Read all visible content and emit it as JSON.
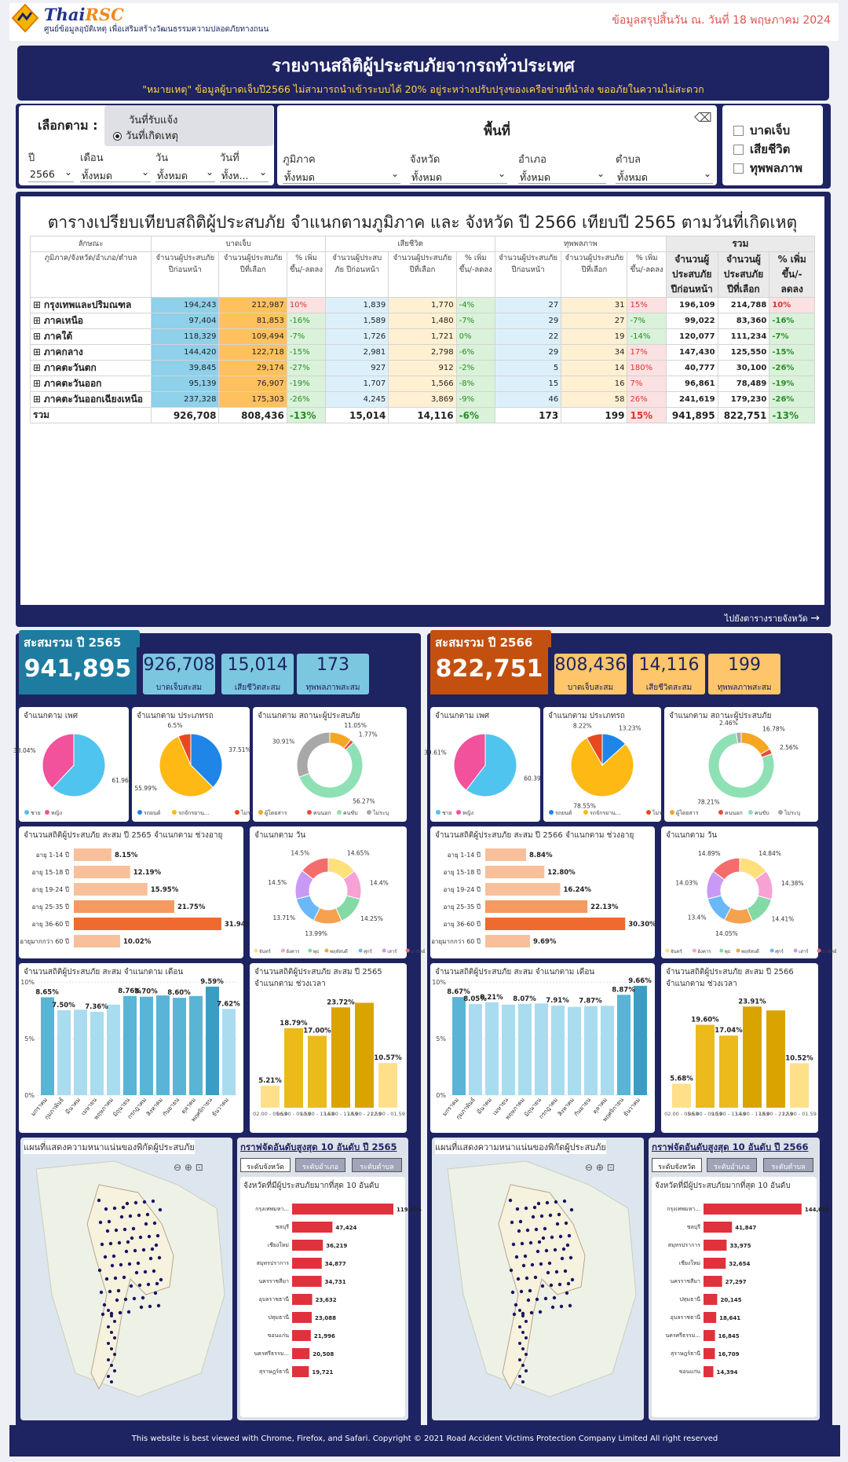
{
  "header": {
    "brand_a": "Thai",
    "brand_b": "RSC",
    "subtitle": "ศูนย์ข้อมูลอุบัติเหตุ เพื่อเสริมสร้างวัฒนธรรมความปลอดภัยทางถนน",
    "date": "ข้อมูลสรุปสิ้นวัน ณ. วันที่ 18 พฤษภาคม 2024"
  },
  "banner": {
    "title": "รายงานสถิติผู้ประสบภัยจากรถทั่วประเทศ",
    "note": "\"หมายเหตุ\" ข้อมูลผู้บาดเจ็บปี2566 ไม่สามารถนำเข้าระบบได้ 20% อยู่ระหว่างปรับปรุงของเครือข่ายที่นำส่ง ขออภัยในความไม่สะดวก"
  },
  "filters": {
    "select_label": "เลือกตาม :",
    "radio1": "วันที่รับแจ้ง",
    "radio2": "วันที่เกิดเหตุ",
    "year_label": "ปี",
    "year_value": "2566",
    "month_label": "เดือน",
    "month_value": "ทั้งหมด",
    "day_label": "วัน",
    "day_value": "ทั้งหมด",
    "date_label": "วันที่",
    "date_value": "ทั้งห...",
    "area_title": "พื้นที่",
    "region_label": "ภูมิภาค",
    "region_value": "ทั้งหมด",
    "province_label": "จังหวัด",
    "province_value": "ทั้งหมด",
    "district_label": "อำเภอ",
    "district_value": "ทั้งหมด",
    "subdistrict_label": "ตำบล",
    "subdistrict_value": "ทั้งหมด",
    "chk1": "บาดเจ็บ",
    "chk2": "เสียชีวิต",
    "chk3": "ทุพพลภาพ"
  },
  "table": {
    "title": "ตารางเปรียบเทียบสถิติผู้ประสบภัย จำแนกตามภูมิภาค และ จังหวัด ปี 2566 เทียบปี 2565 ตามวันที่เกิดเหตุ",
    "h_char": "ลักษณะ",
    "h_inj": "บาดเจ็บ",
    "h_dead": "เสียชีวิต",
    "h_dis": "ทุพพลภาพ",
    "h_sum": "รวม",
    "h_area": "ภูมิภาค/จังหวัด/อำเภอ/ตำบล",
    "h_prev": "จำนวนผู้ประสบภัย ปีก่อนหน้า",
    "h_sel": "จำนวนผู้ประสบภัย ปีที่เลือก",
    "h_pct": "% เพิ่มขึ้น/-ลดลง",
    "h_sprev": "จำนวนผู้ประสบภัย ปีก่อนหน้า",
    "h_ssel": "จำนวนผู้ประสบภัย ปีที่เลือก",
    "h_spct": "% เพิ่มขึ้น/-ลดลง",
    "rows": [
      {
        "name": "กรุงเทพและปริมณฑล",
        "a": "194,243",
        "b": "212,987",
        "c": "10%",
        "d": "1,839",
        "e": "1,770",
        "f": "-4%",
        "g": "27",
        "h": "31",
        "i": "15%",
        "j": "196,109",
        "k": "214,788",
        "l": "10%"
      },
      {
        "name": "ภาคเหนือ",
        "a": "97,404",
        "b": "81,853",
        "c": "-16%",
        "d": "1,589",
        "e": "1,480",
        "f": "-7%",
        "g": "29",
        "h": "27",
        "i": "-7%",
        "j": "99,022",
        "k": "83,360",
        "l": "-16%"
      },
      {
        "name": "ภาคใต้",
        "a": "118,329",
        "b": "109,494",
        "c": "-7%",
        "d": "1,726",
        "e": "1,721",
        "f": "0%",
        "g": "22",
        "h": "19",
        "i": "-14%",
        "j": "120,077",
        "k": "111,234",
        "l": "-7%"
      },
      {
        "name": "ภาคกลาง",
        "a": "144,420",
        "b": "122,718",
        "c": "-15%",
        "d": "2,981",
        "e": "2,798",
        "f": "-6%",
        "g": "29",
        "h": "34",
        "i": "17%",
        "j": "147,430",
        "k": "125,550",
        "l": "-15%"
      },
      {
        "name": "ภาคตะวันตก",
        "a": "39,845",
        "b": "29,174",
        "c": "-27%",
        "d": "927",
        "e": "912",
        "f": "-2%",
        "g": "5",
        "h": "14",
        "i": "180%",
        "j": "40,777",
        "k": "30,100",
        "l": "-26%"
      },
      {
        "name": "ภาคตะวันออก",
        "a": "95,139",
        "b": "76,907",
        "c": "-19%",
        "d": "1,707",
        "e": "1,566",
        "f": "-8%",
        "g": "15",
        "h": "16",
        "i": "7%",
        "j": "96,861",
        "k": "78,489",
        "l": "-19%"
      },
      {
        "name": "ภาคตะวันออกเฉียงเหนือ",
        "a": "237,328",
        "b": "175,303",
        "c": "-26%",
        "d": "4,245",
        "e": "3,869",
        "f": "-9%",
        "g": "46",
        "h": "58",
        "i": "26%",
        "j": "241,619",
        "k": "179,230",
        "l": "-26%"
      }
    ],
    "total": {
      "name": "รวม",
      "a": "926,708",
      "b": "808,436",
      "c": "-13%",
      "d": "15,014",
      "e": "14,116",
      "f": "-6%",
      "g": "173",
      "h": "199",
      "i": "15%",
      "j": "941,895",
      "k": "822,751",
      "l": "-13%"
    },
    "link": "ไปยังตารางรายจังหวัด"
  },
  "left": {
    "title": "สะสมรวม ปี 2565",
    "total": "941,895",
    "k1": "926,708",
    "k1l": "บาดเจ็บสะสม",
    "k2": "15,014",
    "k2l": "เสียชีวิตสะสม",
    "k3": "173",
    "k3l": "ทุพพลภาพสะสม",
    "gender_t": "จำแนกตาม เพศ",
    "type_t": "จำแนกตาม ประเภทรถ",
    "status_t": "จำแนกตาม สถานะผู้ประสบภัย",
    "age_t": "จำนวนสถิติผู้ประสบภัย สะสม ปี 2565 จำแนกตาม ช่วงอายุ",
    "day_t": "จำแนกตาม วัน",
    "month_t": "จำนวนสถิติผู้ประสบภัย สะสม จำแนกตาม เดือน",
    "time_t": "จำนวนสถิติผู้ประสบภัย สะสม ปี 2565 จำแนกตาม ช่วงเวลา",
    "map_t": "แผนที่แสดงความหนาแน่นของพิกัดผู้ประสบภัย",
    "top_t": "กราฟจัดอันดับสูงสุด 10 อันดับ ปี 2565",
    "top_sub": "จังหวัดที่มีผู้ประสบภัยมากที่สุด 10 อันดับ"
  },
  "right": {
    "title": "สะสมรวม ปี 2566",
    "total": "822,751",
    "k1": "808,436",
    "k1l": "บาดเจ็บสะสม",
    "k2": "14,116",
    "k2l": "เสียชีวิตสะสม",
    "k3": "199",
    "k3l": "ทุพพลภาพสะสม",
    "gender_t": "จำแนกตาม เพศ",
    "type_t": "จำแนกตาม ประเภทรถ",
    "status_t": "จำแนกตาม สถานะผู้ประสบภัย",
    "age_t": "จำนวนสถิติผู้ประสบภัย สะสม ปี 2566 จำแนกตาม ช่วงอายุ",
    "day_t": "จำแนกตาม วัน",
    "month_t": "จำนวนสถิติผู้ประสบภัย สะสม จำแนกตาม เดือน",
    "time_t": "จำนวนสถิติผู้ประสบภัย สะสม ปี 2566 จำแนกตาม ช่วงเวลา",
    "map_t": "แผนที่แสดงความหนาแน่นของพิกัดผู้ประสบภัย",
    "top_t": "กราฟจัดอันดับสูงสุด 10 อันดับ ปี 2566",
    "top_sub": "จังหวัดที่มีผู้ประสบภัยมากที่สุด 10 อันดับ"
  },
  "buttons": {
    "b1": "ระดับจังหวัด",
    "b2": "ระดับอำเภอ",
    "b3": "ระดับตำบล"
  },
  "footer": "This website is best viewed with Chrome, Firefox, and Safari. Copyright © 2021 Road Accident Victims Protection Company Limited All right reserved",
  "colors": {
    "navy": "#1e2361",
    "teal": "#2a7fa0",
    "orange_dark": "#c4500f",
    "kpi_left": "#7cc7e0",
    "kpi_right": "#ffc56b"
  },
  "chart_data": [
    {
      "id": "L-gender",
      "type": "pie",
      "labels": [
        "ชาย",
        "หญิง"
      ],
      "values": [
        61.96,
        38.04
      ],
      "colors": [
        "#4fc4ee",
        "#f2519b"
      ]
    },
    {
      "id": "L-type",
      "type": "pie",
      "labels": [
        "รถยนต์",
        "รถจักรยาน...",
        "ไม่ระบุ"
      ],
      "values": [
        37.51,
        55.99,
        6.5
      ],
      "colors": [
        "#1f86e8",
        "#ffb914",
        "#e8481f"
      ]
    },
    {
      "id": "L-status",
      "type": "donut",
      "labels": [
        "ผู้โดยสาร",
        "คนนอก",
        "คนขับ",
        "ไม่ระบุ"
      ],
      "values": [
        11.05,
        1.77,
        56.27,
        30.91
      ],
      "colors": [
        "#f5a623",
        "#e94c3d",
        "#8fe0b4",
        "#a8a8a8"
      ]
    },
    {
      "id": "L-age",
      "type": "bar",
      "categories": [
        "อายุ 1-14 ปี",
        "อายุ 15-18 ปี",
        "อายุ 19-24 ปี",
        "อายุ 25-35 ปี",
        "อายุ 36-60 ปี",
        "อายุมากกว่า 60 ปี"
      ],
      "values": [
        8.15,
        12.19,
        15.95,
        21.75,
        31.94,
        10.02
      ]
    },
    {
      "id": "L-day",
      "type": "donut",
      "labels": [
        "จันทร์",
        "อังคาร",
        "พุธ",
        "พฤหัสบดี",
        "ศุกร์",
        "เสาร์",
        "อาทิตย์"
      ],
      "values": [
        14.65,
        14.4,
        14.25,
        13.99,
        13.71,
        14.5,
        14.5
      ],
      "colors": [
        "#ffe07a",
        "#f7a1d5",
        "#84d9a4",
        "#f5a14d",
        "#6ab8f7",
        "#c89af5",
        "#f56c6c"
      ]
    },
    {
      "id": "L-month",
      "type": "bar",
      "categories": [
        "มกราคม",
        "กุมภาพันธ์",
        "มีนาคม",
        "เมษายน",
        "พฤษภาคม",
        "มิถุนายน",
        "กรกฎาคม",
        "สิงหาคม",
        "กันยายน",
        "ตุลาคม",
        "พฤศจิกายน",
        "ธันวาคม"
      ],
      "values": [
        8.65,
        7.5,
        7.55,
        7.36,
        8.0,
        8.76,
        8.7,
        8.81,
        8.6,
        8.76,
        9.59,
        7.62
      ],
      "ylim": [
        0,
        10
      ]
    },
    {
      "id": "L-time",
      "type": "bar",
      "categories": [
        "02.00 - 05.59",
        "06.00 - 09.59",
        "10.00 - 13.59",
        "14.00 - 17.59",
        "18.00 - 21.59",
        "22.00 - 01.59"
      ],
      "values": [
        5.21,
        18.79,
        17.0,
        23.72,
        24.8,
        10.57
      ]
    },
    {
      "id": "L-top",
      "type": "bar",
      "categories": [
        "กรุงเทพมหา...",
        "ชลบุรี",
        "เชียงใหม่",
        "สมุทรปราการ",
        "นครราชสีมา",
        "อุบลราชธานี",
        "ปทุมธานี",
        "ขอนแก่น",
        "นครศรีธรรม...",
        "สุราษฎร์ธานี"
      ],
      "values": [
        119074,
        47424,
        36219,
        34877,
        34731,
        23632,
        23088,
        21996,
        20508,
        19721
      ]
    },
    {
      "id": "R-gender",
      "type": "pie",
      "labels": [
        "ชาย",
        "หญิง"
      ],
      "values": [
        60.39,
        39.61
      ],
      "colors": [
        "#4fc4ee",
        "#f2519b"
      ]
    },
    {
      "id": "R-type",
      "type": "pie",
      "labels": [
        "รถยนต์",
        "รถจักรยาน...",
        "ไม่ระบุ"
      ],
      "values": [
        13.23,
        78.55,
        8.22
      ],
      "colors": [
        "#1f86e8",
        "#ffb914",
        "#e8481f"
      ]
    },
    {
      "id": "R-status",
      "type": "donut",
      "labels": [
        "ผู้โดยสาร",
        "คนนอก",
        "คนขับ",
        "ไม่ระบุ"
      ],
      "values": [
        16.78,
        2.56,
        78.21,
        2.46
      ],
      "colors": [
        "#f5a623",
        "#e94c3d",
        "#8fe0b4",
        "#a8a8a8"
      ]
    },
    {
      "id": "R-age",
      "type": "bar",
      "categories": [
        "อายุ 1-14 ปี",
        "อายุ 15-18 ปี",
        "อายุ 19-24 ปี",
        "อายุ 25-35 ปี",
        "อายุ 36-60 ปี",
        "อายุมากกว่า 60 ปี"
      ],
      "values": [
        8.84,
        12.8,
        16.24,
        22.13,
        30.3,
        9.69
      ]
    },
    {
      "id": "R-day",
      "type": "donut",
      "labels": [
        "จันทร์",
        "อังคาร",
        "พุธ",
        "พฤหัสบดี",
        "ศุกร์",
        "เสาร์",
        "อาทิตย์"
      ],
      "values": [
        14.84,
        14.38,
        14.41,
        14.05,
        13.4,
        14.03,
        14.89
      ],
      "colors": [
        "#ffe07a",
        "#f7a1d5",
        "#84d9a4",
        "#f5a14d",
        "#6ab8f7",
        "#c89af5",
        "#f56c6c"
      ]
    },
    {
      "id": "R-month",
      "type": "bar",
      "categories": [
        "มกราคม",
        "กุมภาพันธ์",
        "มีนาคม",
        "เมษายน",
        "พฤษภาคม",
        "มิถุนายน",
        "กรกฎาคม",
        "สิงหาคม",
        "กันยายน",
        "ตุลาคม",
        "พฤศจิกายน",
        "ธันวาคม"
      ],
      "values": [
        8.67,
        8.05,
        8.21,
        8.0,
        8.07,
        8.1,
        7.91,
        7.8,
        7.87,
        7.9,
        8.87,
        9.66
      ],
      "ylim": [
        0,
        10
      ]
    },
    {
      "id": "R-time",
      "type": "bar",
      "categories": [
        "02.00 - 05.59",
        "06.00 - 09.59",
        "10.00 - 13.59",
        "14.00 - 17.59",
        "18.00 - 21.59",
        "22.00 - 01.59"
      ],
      "values": [
        5.68,
        19.6,
        17.04,
        23.91,
        23.0,
        10.52
      ]
    },
    {
      "id": "R-top",
      "type": "bar",
      "categories": [
        "กรุงเทพมหา...",
        "ชลบุรี",
        "สมุทรปราการ",
        "เชียงใหม่",
        "นครราชสีมา",
        "ปทุมธานี",
        "อุบลราชธานี",
        "นครศรีธรรม...",
        "สุราษฎร์ธานี",
        "ขอนแก่น"
      ],
      "values": [
        144090,
        41847,
        33975,
        32654,
        27297,
        20145,
        18641,
        16845,
        16709,
        14394
      ]
    }
  ]
}
